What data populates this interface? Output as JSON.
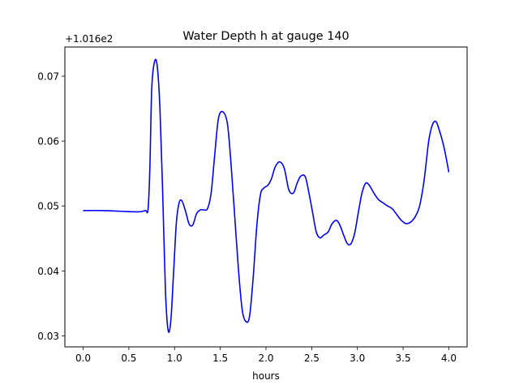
{
  "chart_data": {
    "type": "line",
    "title": "Water Depth h at gauge 140",
    "xlabel": "hours",
    "ylabel": "",
    "y_offset_label": "+1.016e2",
    "xlim": [
      -0.2,
      4.2
    ],
    "ylim": [
      0.0283,
      0.0745
    ],
    "x_ticks": [
      0.0,
      0.5,
      1.0,
      1.5,
      2.0,
      2.5,
      3.0,
      3.5,
      4.0
    ],
    "x_tick_labels": [
      "0.0",
      "0.5",
      "1.0",
      "1.5",
      "2.0",
      "2.5",
      "3.0",
      "3.5",
      "4.0"
    ],
    "y_ticks": [
      0.03,
      0.04,
      0.05,
      0.06,
      0.07
    ],
    "y_tick_labels": [
      "0.03",
      "0.04",
      "0.05",
      "0.06",
      "0.07"
    ],
    "grid": false,
    "series": [
      {
        "color": "#0000ff",
        "x": [
          0.0,
          0.2,
          0.4,
          0.6,
          0.68,
          0.71,
          0.73,
          0.75,
          0.78,
          0.81,
          0.84,
          0.87,
          0.9,
          0.93,
          0.96,
          0.99,
          1.02,
          1.05,
          1.08,
          1.12,
          1.16,
          1.2,
          1.24,
          1.28,
          1.32,
          1.36,
          1.4,
          1.44,
          1.48,
          1.53,
          1.58,
          1.62,
          1.66,
          1.7,
          1.74,
          1.78,
          1.82,
          1.86,
          1.9,
          1.94,
          1.98,
          2.02,
          2.06,
          2.1,
          2.15,
          2.2,
          2.25,
          2.3,
          2.34,
          2.38,
          2.43,
          2.47,
          2.51,
          2.55,
          2.59,
          2.63,
          2.68,
          2.72,
          2.77,
          2.81,
          2.85,
          2.89,
          2.93,
          2.97,
          3.01,
          3.05,
          3.09,
          3.13,
          3.18,
          3.23,
          3.28,
          3.33,
          3.38,
          3.43,
          3.48,
          3.53,
          3.58,
          3.63,
          3.68,
          3.73,
          3.78,
          3.82,
          3.86,
          3.9,
          3.94,
          3.97,
          4.0
        ],
        "y": [
          0.0493,
          0.0493,
          0.0492,
          0.0491,
          0.0493,
          0.0495,
          0.056,
          0.068,
          0.0722,
          0.0716,
          0.065,
          0.052,
          0.037,
          0.0308,
          0.0325,
          0.04,
          0.0475,
          0.0505,
          0.0508,
          0.0492,
          0.0472,
          0.0471,
          0.0488,
          0.0494,
          0.0494,
          0.0496,
          0.052,
          0.058,
          0.0635,
          0.0645,
          0.0625,
          0.056,
          0.048,
          0.04,
          0.034,
          0.0322,
          0.033,
          0.039,
          0.047,
          0.0518,
          0.0528,
          0.0532,
          0.0542,
          0.056,
          0.0568,
          0.0558,
          0.0525,
          0.052,
          0.0535,
          0.0546,
          0.0545,
          0.052,
          0.049,
          0.046,
          0.0451,
          0.0455,
          0.046,
          0.0472,
          0.0478,
          0.047,
          0.0455,
          0.0442,
          0.0442,
          0.0458,
          0.049,
          0.052,
          0.0535,
          0.0532,
          0.052,
          0.051,
          0.0505,
          0.05,
          0.0496,
          0.0487,
          0.0478,
          0.0473,
          0.0475,
          0.0483,
          0.05,
          0.054,
          0.06,
          0.0625,
          0.063,
          0.0615,
          0.0595,
          0.0575,
          0.0552
        ]
      }
    ]
  }
}
